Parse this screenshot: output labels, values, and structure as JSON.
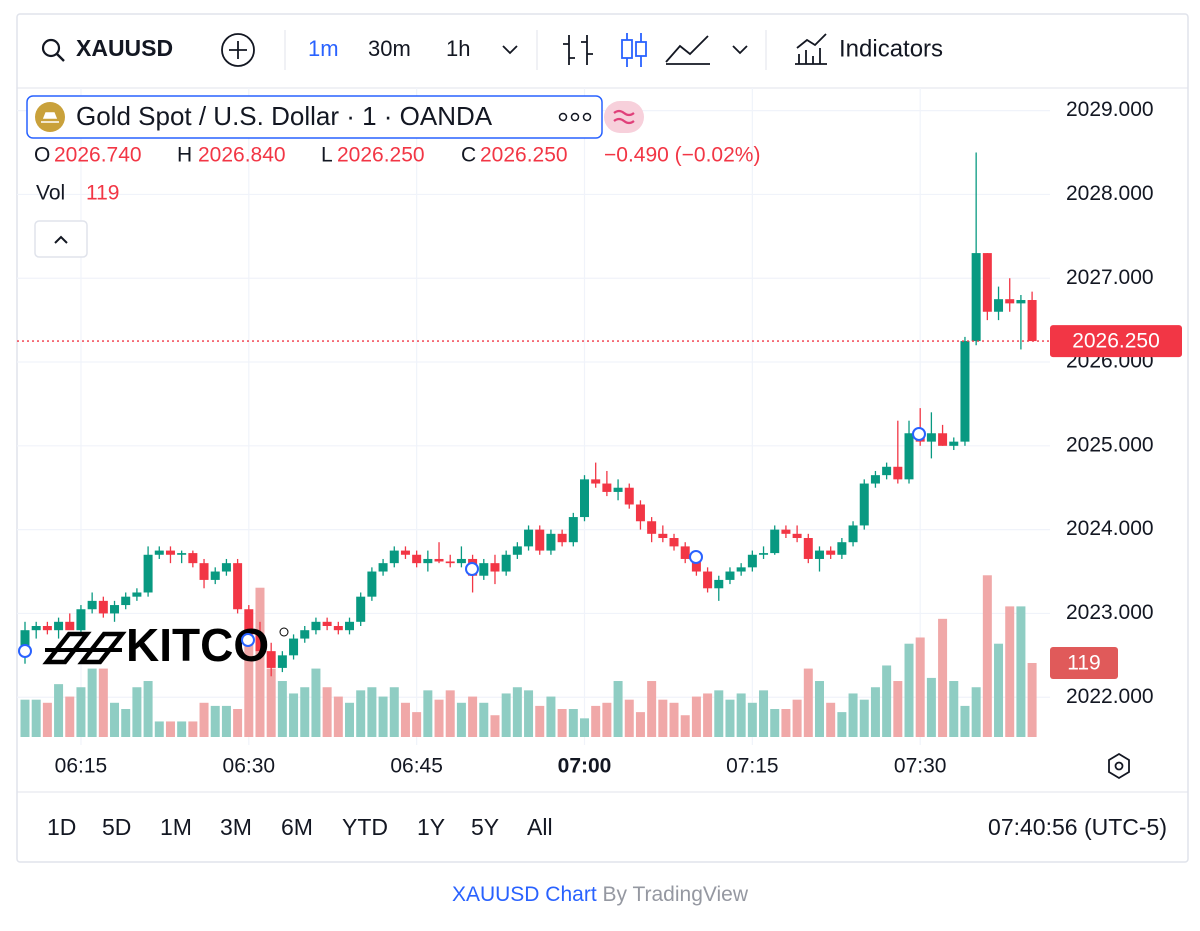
{
  "toolbar": {
    "symbol": "XAUUSD",
    "intervals": [
      "1m",
      "30m",
      "1h"
    ],
    "indicators": "Indicators"
  },
  "legend": {
    "title": "Gold Spot / U.S. Dollar · 1 · OANDA",
    "open_label": "O",
    "open": "2026.740",
    "high_label": "H",
    "high": "2026.840",
    "low_label": "L",
    "low": "2026.250",
    "close_label": "C",
    "close": "2026.250",
    "change": "−0.490 (−0.02%)",
    "vol_label": "Vol"
  },
  "watermark": "KITCO",
  "chart_data": {
    "type": "candlestick",
    "grid": true,
    "up_color": "#089981",
    "down_color": "#f23645",
    "volume_up_color": "#8fcdc3",
    "volume_down_color": "#f0a8a8",
    "x": [
      "06:10",
      "06:11",
      "06:12",
      "06:13",
      "06:14",
      "06:15",
      "06:16",
      "06:17",
      "06:18",
      "06:19",
      "06:20",
      "06:21",
      "06:22",
      "06:23",
      "06:24",
      "06:25",
      "06:26",
      "06:27",
      "06:28",
      "06:29",
      "06:30",
      "06:31",
      "06:32",
      "06:33",
      "06:34",
      "06:35",
      "06:36",
      "06:37",
      "06:38",
      "06:39",
      "06:40",
      "06:41",
      "06:42",
      "06:43",
      "06:44",
      "06:45",
      "06:46",
      "06:47",
      "06:48",
      "06:49",
      "06:50",
      "06:51",
      "06:52",
      "06:53",
      "06:54",
      "06:55",
      "06:56",
      "06:57",
      "06:58",
      "06:59",
      "07:00",
      "07:01",
      "07:02",
      "07:03",
      "07:04",
      "07:05",
      "07:06",
      "07:07",
      "07:08",
      "07:09",
      "07:10",
      "07:11",
      "07:12",
      "07:13",
      "07:14",
      "07:15",
      "07:16",
      "07:17",
      "07:18",
      "07:19",
      "07:20",
      "07:21",
      "07:22",
      "07:23",
      "07:24",
      "07:25",
      "07:26",
      "07:27",
      "07:28",
      "07:29",
      "07:30",
      "07:31",
      "07:32",
      "07:33",
      "07:34",
      "07:35",
      "07:36",
      "07:37",
      "07:38",
      "07:39",
      "07:40"
    ],
    "open": [
      2022.6,
      2022.8,
      2022.85,
      2022.8,
      2022.9,
      2022.8,
      2023.05,
      2023.15,
      2023.0,
      2023.1,
      2023.2,
      2023.25,
      2023.7,
      2023.75,
      2023.7,
      2023.72,
      2023.6,
      2023.4,
      2023.5,
      2023.6,
      2023.05,
      2022.75,
      2022.55,
      2022.35,
      2022.5,
      2022.7,
      2022.8,
      2022.9,
      2022.85,
      2022.8,
      2022.9,
      2023.2,
      2023.5,
      2023.6,
      2023.75,
      2023.7,
      2023.6,
      2023.65,
      2023.62,
      2023.6,
      2023.65,
      2023.45,
      2023.6,
      2023.5,
      2023.7,
      2023.8,
      2024.0,
      2023.75,
      2023.95,
      2023.85,
      2024.15,
      2024.6,
      2024.55,
      2024.45,
      2024.5,
      2024.3,
      2024.1,
      2023.95,
      2023.9,
      2023.8,
      2023.65,
      2023.5,
      2023.3,
      2023.4,
      2023.5,
      2023.55,
      2023.7,
      2023.72,
      2024.0,
      2023.95,
      2023.9,
      2023.65,
      2023.75,
      2023.7,
      2023.85,
      2024.05,
      2024.55,
      2024.65,
      2024.75,
      2024.6,
      2025.15,
      2025.05,
      2025.15,
      2025.0,
      2025.05,
      2026.25,
      2027.3,
      2026.6,
      2026.75,
      2026.7,
      2026.74
    ],
    "high": [
      2022.9,
      2022.9,
      2022.9,
      2022.95,
      2023.0,
      2023.1,
      2023.25,
      2023.2,
      2023.15,
      2023.25,
      2023.3,
      2023.8,
      2023.8,
      2023.8,
      2023.75,
      2023.75,
      2023.65,
      2023.55,
      2023.65,
      2023.65,
      2023.1,
      2022.9,
      2022.65,
      2022.55,
      2022.75,
      2022.85,
      2022.95,
      2022.95,
      2022.9,
      2022.95,
      2023.25,
      2023.55,
      2023.65,
      2023.8,
      2023.8,
      2023.75,
      2023.75,
      2023.85,
      2023.7,
      2023.8,
      2023.7,
      2023.65,
      2023.7,
      2023.75,
      2023.85,
      2024.05,
      2024.05,
      2024.0,
      2024.0,
      2024.2,
      2024.65,
      2024.8,
      2024.7,
      2024.6,
      2024.55,
      2024.35,
      2024.15,
      2024.05,
      2023.95,
      2023.85,
      2023.7,
      2023.55,
      2023.45,
      2023.55,
      2023.6,
      2023.75,
      2023.8,
      2024.05,
      2024.05,
      2024.05,
      2023.95,
      2023.8,
      2023.8,
      2023.9,
      2024.1,
      2024.6,
      2024.7,
      2024.8,
      2025.3,
      2025.3,
      2025.45,
      2025.4,
      2025.25,
      2025.1,
      2026.3,
      2028.5,
      2027.3,
      2026.9,
      2027.0,
      2026.8,
      2026.84
    ],
    "low": [
      2022.4,
      2022.7,
      2022.75,
      2022.7,
      2022.85,
      2022.75,
      2023.0,
      2022.95,
      2022.9,
      2023.05,
      2023.15,
      2023.2,
      2023.65,
      2023.6,
      2023.6,
      2023.55,
      2023.3,
      2023.35,
      2023.45,
      2023.0,
      2022.6,
      2022.45,
      2022.25,
      2022.3,
      2022.45,
      2022.65,
      2022.75,
      2022.8,
      2022.75,
      2022.75,
      2022.85,
      2023.15,
      2023.45,
      2023.55,
      2023.65,
      2023.55,
      2023.5,
      2023.6,
      2023.55,
      2023.55,
      2023.25,
      2023.4,
      2023.35,
      2023.45,
      2023.65,
      2023.75,
      2023.7,
      2023.7,
      2023.8,
      2023.8,
      2024.1,
      2024.5,
      2024.4,
      2024.35,
      2024.25,
      2024.0,
      2023.85,
      2023.85,
      2023.75,
      2023.6,
      2023.45,
      2023.25,
      2023.15,
      2023.35,
      2023.45,
      2023.5,
      2023.65,
      2023.7,
      2023.9,
      2023.85,
      2023.6,
      2023.5,
      2023.65,
      2023.65,
      2023.8,
      2024.0,
      2024.5,
      2024.6,
      2024.55,
      2024.55,
      2025.0,
      2024.85,
      2025.0,
      2024.95,
      2025.0,
      2026.2,
      2026.5,
      2026.5,
      2026.6,
      2026.15,
      2026.25
    ],
    "close": [
      2022.8,
      2022.85,
      2022.8,
      2022.9,
      2022.8,
      2023.05,
      2023.15,
      2023.0,
      2023.1,
      2023.2,
      2023.25,
      2023.7,
      2023.75,
      2023.7,
      2023.72,
      2023.6,
      2023.4,
      2023.5,
      2023.6,
      2023.05,
      2022.75,
      2022.55,
      2022.35,
      2022.5,
      2022.7,
      2022.8,
      2022.9,
      2022.85,
      2022.8,
      2022.9,
      2023.2,
      2023.5,
      2023.6,
      2023.75,
      2023.7,
      2023.6,
      2023.65,
      2023.62,
      2023.6,
      2023.65,
      2023.45,
      2023.6,
      2023.5,
      2023.7,
      2023.8,
      2024.0,
      2023.75,
      2023.95,
      2023.85,
      2024.15,
      2024.6,
      2024.55,
      2024.45,
      2024.5,
      2024.3,
      2024.1,
      2023.95,
      2023.9,
      2023.8,
      2023.65,
      2023.5,
      2023.3,
      2023.4,
      2023.5,
      2023.55,
      2023.7,
      2023.72,
      2024.0,
      2023.95,
      2023.9,
      2023.65,
      2023.75,
      2023.7,
      2023.85,
      2024.05,
      2024.55,
      2024.65,
      2024.75,
      2024.6,
      2025.15,
      2025.05,
      2025.15,
      2025.0,
      2025.05,
      2026.25,
      2027.3,
      2026.6,
      2026.75,
      2026.7,
      2026.74,
      2026.25
    ],
    "volume": [
      60,
      60,
      55,
      85,
      65,
      80,
      110,
      110,
      55,
      45,
      80,
      90,
      25,
      25,
      25,
      25,
      55,
      50,
      50,
      45,
      170,
      240,
      110,
      90,
      70,
      80,
      110,
      80,
      65,
      55,
      75,
      80,
      65,
      80,
      55,
      40,
      75,
      60,
      75,
      55,
      65,
      55,
      35,
      70,
      80,
      75,
      50,
      65,
      45,
      45,
      30,
      50,
      55,
      90,
      60,
      40,
      90,
      60,
      55,
      35,
      65,
      70,
      75,
      60,
      70,
      55,
      75,
      45,
      45,
      60,
      110,
      90,
      55,
      40,
      70,
      60,
      80,
      115,
      90,
      150,
      160,
      95,
      190,
      90,
      50,
      80,
      260,
      150,
      210,
      210,
      119
    ],
    "ylim": [
      2021.43,
      2029.27
    ],
    "yticks": [
      {
        "value": 2022,
        "label": "2022.000"
      },
      {
        "value": 2023,
        "label": "2023.000"
      },
      {
        "value": 2024,
        "label": "2024.000"
      },
      {
        "value": 2025,
        "label": "2025.000"
      },
      {
        "value": 2026,
        "label": "2026.000"
      },
      {
        "value": 2027,
        "label": "2027.000"
      },
      {
        "value": 2028,
        "label": "2028.000"
      },
      {
        "value": 2029,
        "label": "2029.000"
      }
    ],
    "xticks": [
      "06:15",
      "06:30",
      "06:45",
      "07:00",
      "07:15",
      "07:30"
    ],
    "last_price_label": "2026.250"
  },
  "ranges": [
    "1D",
    "5D",
    "1M",
    "3M",
    "6M",
    "YTD",
    "1Y",
    "5Y",
    "All"
  ],
  "clock": "07:40:56 (UTC-5)",
  "footer": {
    "link": "XAUUSD Chart",
    "by": "By TradingView"
  }
}
